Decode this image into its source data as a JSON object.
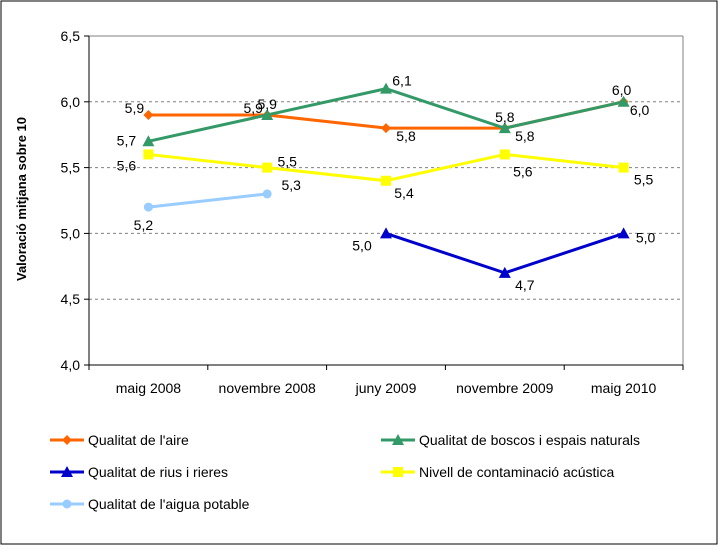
{
  "chart_data": {
    "type": "line",
    "title": "",
    "xlabel": "",
    "ylabel": "Valoració mitjana sobre 10",
    "ylim": [
      4.0,
      6.5
    ],
    "yticks": [
      "4,0",
      "4,5",
      "5,0",
      "5,5",
      "6,0",
      "6,5"
    ],
    "grid": "horizontal dashed",
    "legend_position": "bottom",
    "categories": [
      "maig 2008",
      "novembre 2008",
      "juny 2009",
      "novembre 2009",
      "maig 2010"
    ],
    "series": [
      {
        "name": "Qualitat de l'aire",
        "color": "#ff6600",
        "marker": "diamond",
        "values": [
          5.9,
          5.9,
          5.8,
          5.8,
          6.0
        ],
        "labels": [
          "5,9",
          "5,9",
          "5,8",
          "5,8",
          "6,0"
        ]
      },
      {
        "name": "Qualitat de boscos i espais naturals",
        "color": "#339966",
        "marker": "triangle",
        "values": [
          5.7,
          5.9,
          6.1,
          5.8,
          6.0
        ],
        "labels": [
          "5,7",
          "5,9",
          "6,1",
          "5,8",
          "6,0"
        ]
      },
      {
        "name": "Qualitat de rius i rieres",
        "color": "#0000cc",
        "marker": "triangle",
        "values": [
          null,
          null,
          5.0,
          4.7,
          5.0
        ],
        "labels": [
          null,
          null,
          "5,0",
          "4,7",
          "5,0"
        ]
      },
      {
        "name": "Nivell de contaminació acústica",
        "color": "#ffff00",
        "marker": "square",
        "values": [
          5.6,
          5.5,
          5.4,
          5.6,
          5.5
        ],
        "labels": [
          "5,6",
          "5,5",
          "5,4",
          "5,6",
          "5,5"
        ]
      },
      {
        "name": "Qualitat de l'aigua potable",
        "color": "#99ccff",
        "marker": "circle",
        "values": [
          5.2,
          5.3,
          null,
          null,
          null
        ],
        "labels": [
          "5,2",
          "5,3",
          null,
          null,
          null
        ]
      }
    ]
  }
}
